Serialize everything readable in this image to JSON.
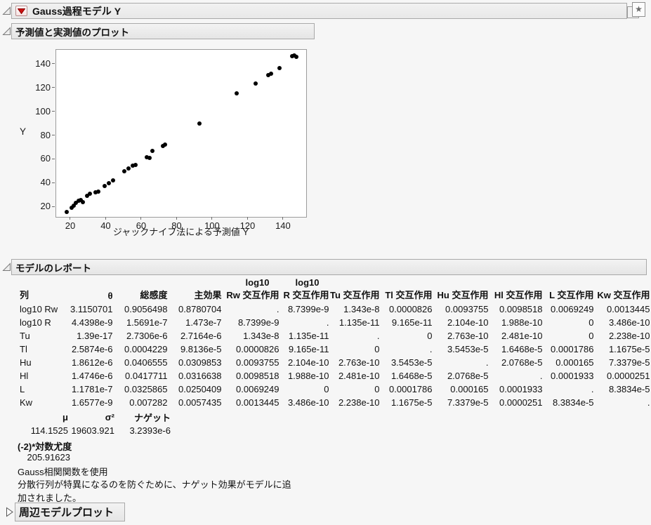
{
  "window": {
    "title": "Gauss過程モデル Y"
  },
  "sections": {
    "plot": {
      "title": "予測値と実測値のプロット"
    },
    "report": {
      "title": "モデルのレポート"
    },
    "marginal": {
      "title": "周辺モデルプロット"
    }
  },
  "chart_data": {
    "type": "scatter",
    "title": "予測値と実測値のプロット",
    "xlabel": "ジャックナイフ法による予測値 Y",
    "ylabel": "Y",
    "xlim": [
      11.7,
      152.7
    ],
    "ylim": [
      11.8,
      152.4
    ],
    "xticks": [
      20,
      40,
      60,
      80,
      100,
      120,
      140
    ],
    "yticks": [
      20,
      40,
      60,
      80,
      100,
      120,
      140
    ],
    "grid": false,
    "marker": "filled-black-circle",
    "points": [
      [
        17.6,
        15.9
      ],
      [
        20.4,
        19.4
      ],
      [
        21.5,
        21.5
      ],
      [
        22.8,
        23.8
      ],
      [
        24.4,
        25.1
      ],
      [
        25.7,
        25.7
      ],
      [
        26.9,
        24.3
      ],
      [
        29.2,
        29.8
      ],
      [
        30.8,
        31.0
      ],
      [
        33.9,
        32.2
      ],
      [
        35.4,
        32.8
      ],
      [
        39.1,
        37.6
      ],
      [
        41.4,
        40.0
      ],
      [
        43.8,
        42.4
      ],
      [
        50.0,
        50.2
      ],
      [
        52.6,
        52.8
      ],
      [
        55.0,
        55.1
      ],
      [
        56.6,
        55.7
      ],
      [
        62.8,
        61.8
      ],
      [
        64.2,
        61.5
      ],
      [
        65.8,
        67.3
      ],
      [
        71.8,
        71.3
      ],
      [
        73.0,
        72.7
      ],
      [
        92.6,
        90.4
      ],
      [
        113.6,
        115.9
      ],
      [
        124.0,
        123.8
      ],
      [
        131.5,
        131.3
      ],
      [
        132.8,
        132.6
      ],
      [
        137.6,
        136.9
      ],
      [
        144.6,
        146.8
      ],
      [
        145.8,
        147.6
      ],
      [
        147.2,
        146.4
      ]
    ]
  },
  "report": {
    "columns": [
      {
        "label": "列"
      },
      {
        "label": "θ"
      },
      {
        "label": "総感度"
      },
      {
        "label": "主効果"
      },
      {
        "top": "log10",
        "label": "Rw 交互作用"
      },
      {
        "top": "log10",
        "label": "R 交互作用"
      },
      {
        "label": "Tu 交互作用"
      },
      {
        "label": "Tl 交互作用"
      },
      {
        "label": "Hu 交互作用"
      },
      {
        "label": "Hl 交互作用"
      },
      {
        "label": "L 交互作用"
      },
      {
        "label": "Kw 交互作用"
      }
    ],
    "rows": [
      {
        "name": "log10 Rw",
        "values": [
          "3.1150701",
          "0.9056498",
          "0.8780704",
          ".",
          "8.7399e-9",
          "1.343e-8",
          "0.0000826",
          "0.0093755",
          "0.0098518",
          "0.0069249",
          "0.0013445"
        ]
      },
      {
        "name": "log10 R",
        "values": [
          "4.4398e-9",
          "1.5691e-7",
          "1.473e-7",
          "8.7399e-9",
          ".",
          "1.135e-11",
          "9.165e-11",
          "2.104e-10",
          "1.988e-10",
          "0",
          "3.486e-10"
        ]
      },
      {
        "name": "Tu",
        "values": [
          "1.39e-17",
          "2.7306e-6",
          "2.7164e-6",
          "1.343e-8",
          "1.135e-11",
          ".",
          "0",
          "2.763e-10",
          "2.481e-10",
          "0",
          "2.238e-10"
        ]
      },
      {
        "name": "Tl",
        "values": [
          "2.5874e-6",
          "0.0004229",
          "9.8136e-5",
          "0.0000826",
          "9.165e-11",
          "0",
          ".",
          "3.5453e-5",
          "1.6468e-5",
          "0.0001786",
          "1.1675e-5"
        ]
      },
      {
        "name": "Hu",
        "values": [
          "1.8612e-6",
          "0.0406555",
          "0.0309853",
          "0.0093755",
          "2.104e-10",
          "2.763e-10",
          "3.5453e-5",
          ".",
          "2.0768e-5",
          "0.000165",
          "7.3379e-5"
        ]
      },
      {
        "name": "Hl",
        "values": [
          "1.4746e-6",
          "0.0417711",
          "0.0316638",
          "0.0098518",
          "1.988e-10",
          "2.481e-10",
          "1.6468e-5",
          "2.0768e-5",
          ".",
          "0.0001933",
          "0.0000251"
        ]
      },
      {
        "name": "L",
        "values": [
          "1.1781e-7",
          "0.0325865",
          "0.0250409",
          "0.0069249",
          "0",
          "0",
          "0.0001786",
          "0.000165",
          "0.0001933",
          ".",
          "8.3834e-5"
        ]
      },
      {
        "name": "Kw",
        "values": [
          "1.6577e-9",
          "0.007282",
          "0.0057435",
          "0.0013445",
          "3.486e-10",
          "2.238e-10",
          "1.1675e-5",
          "7.3379e-5",
          "0.0000251",
          "8.3834e-5",
          "."
        ]
      }
    ],
    "params": {
      "headers": [
        "μ",
        "σ²",
        "ナゲット"
      ],
      "values": [
        "114.1525",
        "19603.921",
        "3.2393e-6"
      ]
    },
    "loglik": {
      "label": "(-2)*対数尤度",
      "value": "205.91623"
    },
    "notes": [
      "Gauss相関関数を使用",
      "分散行列が特異になるのを防ぐために、ナゲット効果がモデルに追加されました。"
    ]
  },
  "colors": {
    "accent_red": "#cc1111",
    "header_border": "#a9a9a9",
    "plot_border": "#9c9c9c",
    "point": "#000000"
  }
}
